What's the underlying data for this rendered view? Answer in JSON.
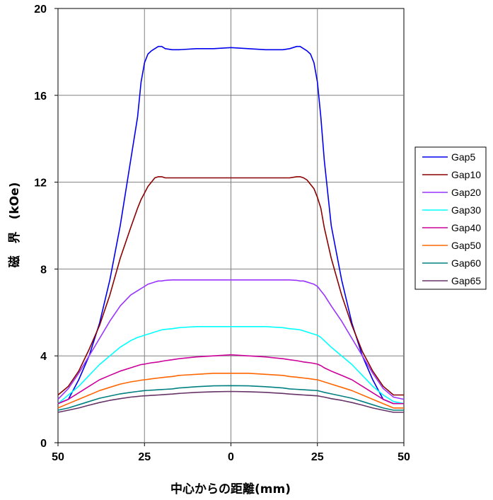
{
  "chart_data": {
    "type": "line",
    "xlabel": "中心からの距離(mm)",
    "ylabel": "磁　界　(kOe)",
    "x_tick_labels": [
      "50",
      "25",
      "0",
      "25",
      "50"
    ],
    "x_tick_values": [
      -50,
      -25,
      0,
      25,
      50
    ],
    "xlim": [
      -50,
      50
    ],
    "ylim": [
      0,
      20
    ],
    "y_ticks": [
      0,
      4,
      8,
      12,
      16,
      20
    ],
    "y_tick_labels": [
      "0",
      "4",
      "8",
      "12",
      "16",
      "20"
    ],
    "grid": true,
    "legend_position": "right",
    "x": [
      -50,
      -47,
      -44,
      -41,
      -38,
      -35,
      -32,
      -29,
      -27,
      -26,
      -25,
      -24,
      -23,
      -22,
      -21,
      -20,
      -19,
      -17,
      -15,
      -10,
      -5,
      0,
      5,
      10,
      15,
      17,
      19,
      20,
      21,
      22,
      23,
      24,
      25,
      26,
      27,
      29,
      32,
      35,
      38,
      41,
      44,
      47,
      50
    ],
    "series": [
      {
        "name": "Gap5",
        "color": "#0000ee",
        "values": [
          1.8,
          2.0,
          2.9,
          4.0,
          5.5,
          7.5,
          10.0,
          13.0,
          15.0,
          16.6,
          17.5,
          17.9,
          18.05,
          18.15,
          18.25,
          18.25,
          18.15,
          18.1,
          18.1,
          18.15,
          18.15,
          18.2,
          18.15,
          18.1,
          18.1,
          18.15,
          18.25,
          18.25,
          18.15,
          18.05,
          17.9,
          17.5,
          16.6,
          15.0,
          13.0,
          10.0,
          7.5,
          5.5,
          4.0,
          2.9,
          2.0,
          1.8,
          1.8
        ]
      },
      {
        "name": "Gap10",
        "color": "#8b0000",
        "values": [
          2.2,
          2.6,
          3.3,
          4.3,
          5.4,
          6.8,
          8.5,
          9.9,
          10.8,
          11.2,
          11.5,
          11.8,
          12.0,
          12.2,
          12.25,
          12.25,
          12.2,
          12.2,
          12.2,
          12.2,
          12.2,
          12.2,
          12.2,
          12.2,
          12.2,
          12.2,
          12.25,
          12.25,
          12.2,
          12.1,
          11.9,
          11.7,
          11.3,
          10.8,
          9.9,
          8.5,
          6.8,
          5.4,
          4.2,
          3.3,
          2.6,
          2.2,
          2.2
        ]
      },
      {
        "name": "Gap20",
        "color": "#9933ff",
        "values": [
          2.0,
          2.5,
          3.2,
          4.0,
          4.8,
          5.6,
          6.3,
          6.8,
          7.0,
          7.1,
          7.2,
          7.3,
          7.35,
          7.4,
          7.45,
          7.45,
          7.48,
          7.5,
          7.5,
          7.5,
          7.5,
          7.5,
          7.5,
          7.5,
          7.5,
          7.5,
          7.48,
          7.45,
          7.45,
          7.4,
          7.35,
          7.3,
          7.2,
          7.0,
          6.8,
          6.3,
          5.6,
          4.8,
          4.0,
          3.2,
          2.5,
          2.1,
          2.0
        ]
      },
      {
        "name": "Gap30",
        "color": "#00ffff",
        "values": [
          1.8,
          2.2,
          2.6,
          3.1,
          3.6,
          4.0,
          4.4,
          4.7,
          4.85,
          4.9,
          4.95,
          5.0,
          5.05,
          5.1,
          5.15,
          5.2,
          5.22,
          5.25,
          5.3,
          5.35,
          5.35,
          5.35,
          5.35,
          5.35,
          5.3,
          5.25,
          5.22,
          5.2,
          5.15,
          5.1,
          5.05,
          5.0,
          4.95,
          4.85,
          4.7,
          4.4,
          4.0,
          3.6,
          3.1,
          2.6,
          2.2,
          1.9,
          1.8
        ]
      },
      {
        "name": "Gap40",
        "color": "#cc0099",
        "values": [
          1.8,
          2.0,
          2.3,
          2.6,
          2.9,
          3.1,
          3.3,
          3.45,
          3.55,
          3.6,
          3.62,
          3.65,
          3.68,
          3.7,
          3.72,
          3.75,
          3.78,
          3.82,
          3.87,
          3.95,
          4.0,
          4.05,
          4.0,
          3.95,
          3.87,
          3.82,
          3.78,
          3.75,
          3.72,
          3.7,
          3.68,
          3.65,
          3.62,
          3.55,
          3.45,
          3.3,
          3.1,
          2.9,
          2.6,
          2.3,
          2.0,
          1.8,
          1.8
        ]
      },
      {
        "name": "Gap50",
        "color": "#ff6600",
        "values": [
          1.6,
          1.8,
          2.0,
          2.2,
          2.4,
          2.55,
          2.7,
          2.8,
          2.85,
          2.88,
          2.9,
          2.92,
          2.94,
          2.96,
          2.98,
          3.0,
          3.02,
          3.05,
          3.1,
          3.15,
          3.2,
          3.2,
          3.2,
          3.15,
          3.1,
          3.05,
          3.02,
          3.0,
          2.98,
          2.96,
          2.94,
          2.92,
          2.9,
          2.85,
          2.8,
          2.7,
          2.55,
          2.4,
          2.2,
          2.0,
          1.8,
          1.6,
          1.6
        ]
      },
      {
        "name": "Gap60",
        "color": "#008080",
        "values": [
          1.5,
          1.6,
          1.75,
          1.9,
          2.05,
          2.15,
          2.25,
          2.32,
          2.36,
          2.38,
          2.4,
          2.41,
          2.42,
          2.43,
          2.44,
          2.45,
          2.46,
          2.48,
          2.52,
          2.58,
          2.62,
          2.63,
          2.62,
          2.58,
          2.52,
          2.48,
          2.46,
          2.45,
          2.44,
          2.43,
          2.42,
          2.41,
          2.4,
          2.36,
          2.32,
          2.25,
          2.15,
          2.05,
          1.9,
          1.75,
          1.6,
          1.5,
          1.5
        ]
      },
      {
        "name": "Gap65",
        "color": "#663366",
        "values": [
          1.4,
          1.5,
          1.6,
          1.73,
          1.85,
          1.95,
          2.03,
          2.1,
          2.13,
          2.15,
          2.16,
          2.17,
          2.18,
          2.19,
          2.2,
          2.21,
          2.22,
          2.24,
          2.27,
          2.32,
          2.35,
          2.36,
          2.35,
          2.32,
          2.27,
          2.24,
          2.22,
          2.21,
          2.2,
          2.19,
          2.18,
          2.17,
          2.16,
          2.13,
          2.1,
          2.03,
          1.95,
          1.85,
          1.73,
          1.6,
          1.5,
          1.4,
          1.4
        ]
      }
    ]
  }
}
